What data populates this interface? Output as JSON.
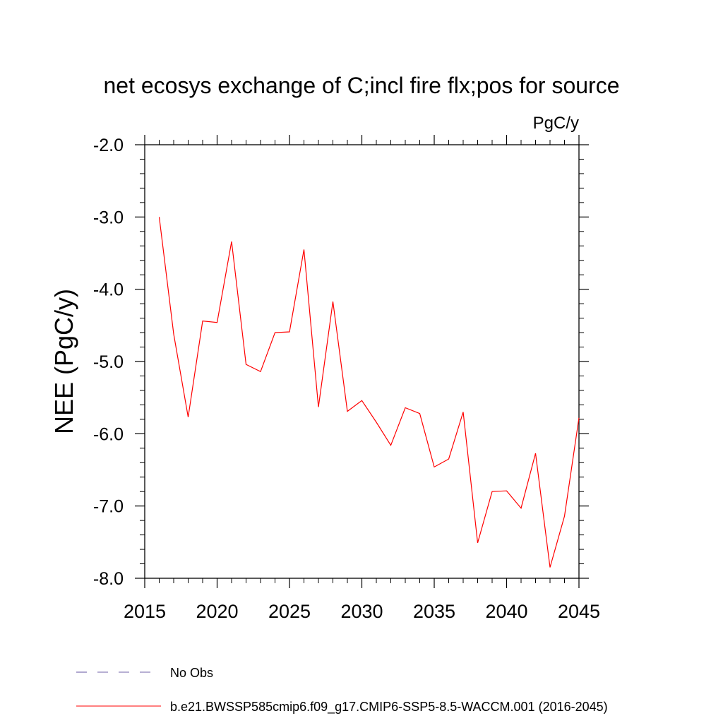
{
  "chart_data": {
    "type": "line",
    "title": "net ecosys exchange of C;incl fire flx;pos for source",
    "units": "PgC/y",
    "ylabel": "NEE  (PgC/y)",
    "xlabel": "",
    "xlim": [
      2015,
      2045
    ],
    "ylim": [
      -8.0,
      -2.0
    ],
    "x_ticks": [
      2015,
      2020,
      2025,
      2030,
      2035,
      2040,
      2045
    ],
    "x_tick_labels": [
      "2015",
      "2020",
      "2025",
      "2030",
      "2035",
      "2040",
      "2045"
    ],
    "y_ticks": [
      -8.0,
      -7.0,
      -6.0,
      -5.0,
      -4.0,
      -3.0,
      -2.0
    ],
    "y_tick_labels": [
      "-8.0",
      "-7.0",
      "-6.0",
      "-5.0",
      "-4.0",
      "-3.0",
      "-2.0"
    ],
    "grid": false,
    "legend_placement": "bottom",
    "series": [
      {
        "name": "b.e21.BWSSP585cmip6.f09_g17.CMIP6-SSP5-8.5-WACCM.001 (2016-2045)",
        "color": "#ff0000",
        "style": "solid",
        "x": [
          2016,
          2017,
          2018,
          2019,
          2020,
          2021,
          2022,
          2023,
          2024,
          2025,
          2026,
          2027,
          2028,
          2029,
          2030,
          2031,
          2032,
          2033,
          2034,
          2035,
          2036,
          2037,
          2038,
          2039,
          2040,
          2041,
          2042,
          2043,
          2044,
          2045
        ],
        "y": [
          -3.0,
          -4.62,
          -5.77,
          -4.44,
          -4.46,
          -3.34,
          -5.04,
          -5.14,
          -4.6,
          -4.59,
          -3.45,
          -5.63,
          -4.17,
          -5.69,
          -5.54,
          -5.84,
          -6.16,
          -5.64,
          -5.72,
          -6.46,
          -6.35,
          -5.7,
          -7.51,
          -6.8,
          -6.79,
          -7.03,
          -6.27,
          -7.85,
          -7.14,
          -5.78
        ]
      }
    ],
    "legend": [
      {
        "label": "No Obs",
        "color": "#7060a8",
        "style": "dashed"
      },
      {
        "label": "b.e21.BWSSP585cmip6.f09_g17.CMIP6-SSP5-8.5-WACCM.001 (2016-2045)",
        "color": "#ff0000",
        "style": "solid"
      }
    ]
  }
}
